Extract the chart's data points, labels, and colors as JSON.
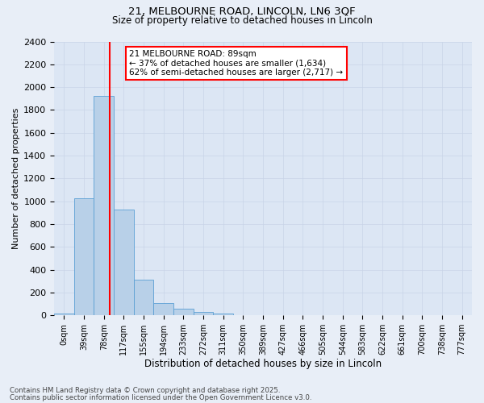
{
  "title_line1": "21, MELBOURNE ROAD, LINCOLN, LN6 3QF",
  "title_line2": "Size of property relative to detached houses in Lincoln",
  "xlabel": "Distribution of detached houses by size in Lincoln",
  "ylabel": "Number of detached properties",
  "bar_labels": [
    "0sqm",
    "39sqm",
    "78sqm",
    "117sqm",
    "155sqm",
    "194sqm",
    "233sqm",
    "272sqm",
    "311sqm",
    "350sqm",
    "389sqm",
    "427sqm",
    "466sqm",
    "505sqm",
    "544sqm",
    "583sqm",
    "622sqm",
    "661sqm",
    "700sqm",
    "738sqm",
    "777sqm"
  ],
  "bar_values": [
    15,
    1025,
    1920,
    930,
    310,
    110,
    55,
    30,
    15,
    0,
    0,
    0,
    0,
    0,
    0,
    0,
    0,
    0,
    0,
    0,
    0
  ],
  "bar_color": "#b8d0e8",
  "bar_edge_color": "#5a9fd4",
  "vline_x_index": 2.28,
  "vline_color": "red",
  "annotation_title": "21 MELBOURNE ROAD: 89sqm",
  "annotation_line1": "← 37% of detached houses are smaller (1,634)",
  "annotation_line2": "62% of semi-detached houses are larger (2,717) →",
  "annotation_box_color": "red",
  "annotation_bg": "white",
  "ylim": [
    0,
    2400
  ],
  "yticks": [
    0,
    200,
    400,
    600,
    800,
    1000,
    1200,
    1400,
    1600,
    1800,
    2000,
    2200,
    2400
  ],
  "grid_color": "#c8d4e8",
  "bg_color": "#e8eef7",
  "plot_bg_color": "#dce6f4",
  "footer1": "Contains HM Land Registry data © Crown copyright and database right 2025.",
  "footer2": "Contains public sector information licensed under the Open Government Licence v3.0."
}
